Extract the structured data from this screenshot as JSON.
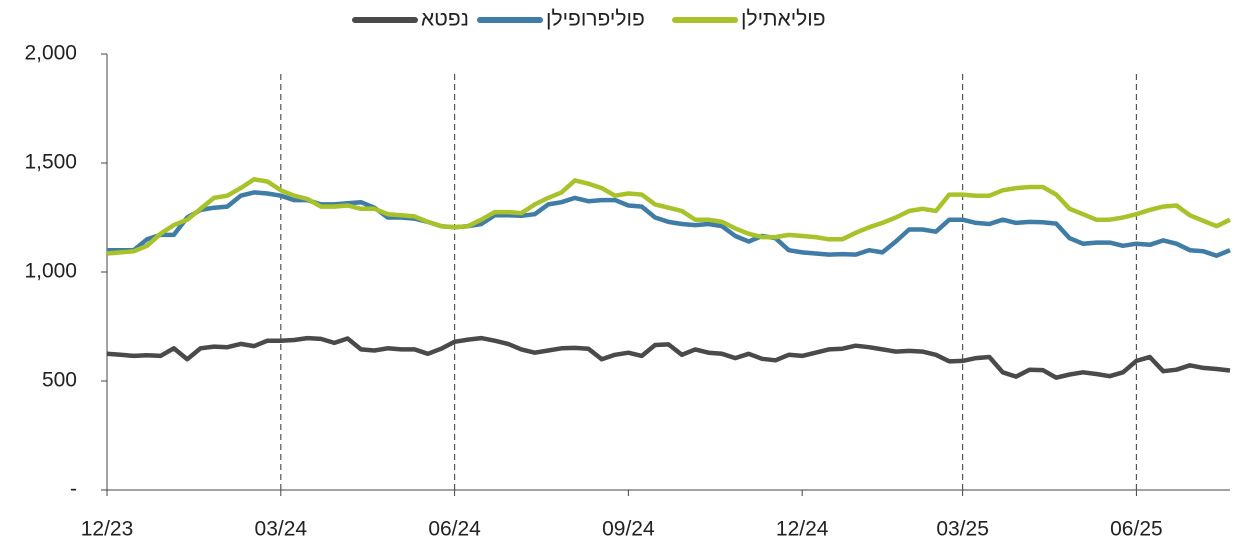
{
  "chart_data": {
    "type": "line",
    "categories": [
      "12/23",
      null,
      null,
      null,
      null,
      null,
      null,
      null,
      null,
      null,
      null,
      null,
      null,
      "03/24",
      null,
      null,
      null,
      null,
      null,
      null,
      null,
      null,
      null,
      null,
      null,
      null,
      "06/24",
      null,
      null,
      null,
      null,
      null,
      null,
      null,
      null,
      null,
      null,
      null,
      null,
      "09/24",
      null,
      null,
      null,
      null,
      null,
      null,
      null,
      null,
      null,
      null,
      null,
      null,
      "12/24",
      null,
      null,
      null,
      null,
      null,
      null,
      null,
      null,
      null,
      null,
      null,
      "03/25",
      null,
      null,
      null,
      null,
      null,
      null,
      null,
      null,
      null,
      null,
      null,
      null,
      "06/25",
      null,
      null,
      null,
      null,
      null,
      null,
      null
    ],
    "series": [
      {
        "name": "נפטא",
        "color": "#4a4a4a",
        "values": [
          625,
          620,
          615,
          618,
          615,
          650,
          600,
          650,
          658,
          655,
          670,
          660,
          685,
          685,
          688,
          697,
          693,
          675,
          695,
          645,
          640,
          650,
          645,
          645,
          625,
          648,
          680,
          690,
          697,
          685,
          670,
          645,
          630,
          640,
          650,
          652,
          648,
          600,
          620,
          630,
          615,
          665,
          668,
          620,
          645,
          630,
          625,
          605,
          625,
          602,
          595,
          620,
          615,
          630,
          645,
          648,
          662,
          655,
          645,
          635,
          638,
          635,
          620,
          590,
          592,
          605,
          610,
          540,
          520,
          552,
          550,
          515,
          530,
          540,
          532,
          522,
          540,
          592,
          610,
          545,
          552,
          572,
          560,
          555,
          548
        ]
      },
      {
        "name": "פוליפרופילן",
        "color": "#3f7ca6",
        "values": [
          1100,
          1100,
          1100,
          1150,
          1170,
          1170,
          1250,
          1285,
          1295,
          1300,
          1350,
          1365,
          1360,
          1350,
          1330,
          1330,
          1310,
          1310,
          1315,
          1320,
          1295,
          1250,
          1250,
          1245,
          1230,
          1210,
          1205,
          1210,
          1220,
          1260,
          1260,
          1258,
          1265,
          1310,
          1320,
          1340,
          1325,
          1330,
          1330,
          1305,
          1300,
          1250,
          1230,
          1220,
          1215,
          1220,
          1210,
          1165,
          1140,
          1165,
          1155,
          1100,
          1090,
          1085,
          1080,
          1082,
          1080,
          1100,
          1090,
          1140,
          1195,
          1195,
          1185,
          1240,
          1240,
          1225,
          1220,
          1240,
          1225,
          1230,
          1228,
          1222,
          1155,
          1130,
          1135,
          1135,
          1120,
          1130,
          1125,
          1145,
          1130,
          1100,
          1095,
          1075,
          1100
        ]
      },
      {
        "name": "פוליאתילן",
        "color": "#a8c22a",
        "values": [
          1085,
          1090,
          1095,
          1120,
          1175,
          1215,
          1240,
          1290,
          1340,
          1350,
          1385,
          1425,
          1415,
          1375,
          1350,
          1335,
          1300,
          1300,
          1305,
          1290,
          1290,
          1265,
          1260,
          1255,
          1230,
          1210,
          1205,
          1210,
          1240,
          1275,
          1275,
          1270,
          1310,
          1340,
          1365,
          1420,
          1405,
          1385,
          1350,
          1360,
          1355,
          1310,
          1295,
          1280,
          1240,
          1240,
          1230,
          1200,
          1175,
          1160,
          1160,
          1170,
          1165,
          1160,
          1150,
          1150,
          1180,
          1205,
          1225,
          1250,
          1280,
          1290,
          1280,
          1355,
          1355,
          1350,
          1350,
          1375,
          1385,
          1390,
          1390,
          1355,
          1290,
          1265,
          1240,
          1240,
          1250,
          1265,
          1285,
          1300,
          1305,
          1260,
          1235,
          1210,
          1240
        ]
      }
    ],
    "ylim": [
      0,
      2000
    ],
    "yticks": [
      {
        "value": 0,
        "label": "-"
      },
      500,
      {
        "value": 1000,
        "label": "1,000"
      },
      {
        "value": 1500,
        "label": "1,500"
      },
      {
        "value": 2000,
        "label": "2,000"
      }
    ],
    "dashed_lines": [
      "03/24",
      "06/24",
      "03/25",
      "06/25"
    ],
    "grid": false
  }
}
